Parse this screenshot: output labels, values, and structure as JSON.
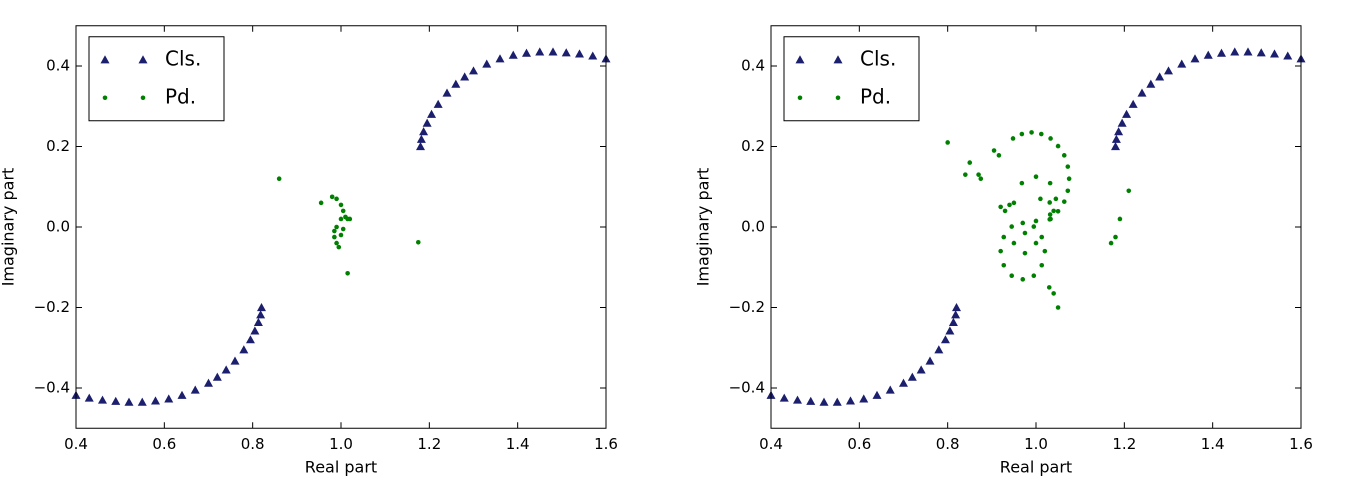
{
  "chart_data": [
    {
      "type": "scatter",
      "xlabel": "Real part",
      "ylabel": "Imaginary part",
      "xlim": [
        0.4,
        1.6
      ],
      "ylim": [
        -0.5,
        0.5
      ],
      "xticks": [
        0.4,
        0.6,
        0.8,
        {
          "value": 1.0,
          "label": "1.0"
        },
        1.2,
        1.4,
        1.6
      ],
      "yticks": [
        {
          "value": -0.4,
          "label": "−0.4"
        },
        {
          "value": -0.2,
          "label": "−0.2"
        },
        {
          "value": 0.0,
          "label": "0.0"
        },
        0.2,
        0.4
      ],
      "legend": "upper left",
      "series": [
        {
          "name": "Cls.",
          "color": "#1b1f6e",
          "marker": "triangle",
          "x": [
            0.4,
            0.43,
            0.46,
            0.49,
            0.52,
            0.55,
            0.58,
            0.61,
            0.64,
            0.67,
            0.7,
            0.72,
            0.74,
            0.76,
            0.78,
            0.795,
            0.805,
            0.813,
            0.818,
            0.82,
            1.18,
            1.182,
            1.187,
            1.195,
            1.205,
            1.22,
            1.24,
            1.26,
            1.28,
            1.3,
            1.33,
            1.36,
            1.39,
            1.42,
            1.45,
            1.48,
            1.51,
            1.54,
            1.57,
            1.6
          ],
          "y": [
            -0.418,
            -0.425,
            -0.43,
            -0.433,
            -0.435,
            -0.435,
            -0.432,
            -0.427,
            -0.418,
            -0.405,
            -0.388,
            -0.373,
            -0.355,
            -0.333,
            -0.305,
            -0.28,
            -0.258,
            -0.237,
            -0.218,
            -0.2,
            0.2,
            0.218,
            0.237,
            0.258,
            0.28,
            0.305,
            0.333,
            0.355,
            0.373,
            0.388,
            0.405,
            0.418,
            0.427,
            0.432,
            0.435,
            0.435,
            0.433,
            0.43,
            0.425,
            0.418
          ]
        },
        {
          "name": "Pd.",
          "color": "#008000",
          "marker": "circle",
          "x": [
            0.86,
            0.955,
            0.98,
            0.99,
            1.0,
            1.005,
            1.01,
            1.015,
            1.02,
            1.0,
            0.99,
            0.985,
            0.985,
            0.99,
            0.995,
            1.0,
            1.005,
            1.015,
            1.175
          ],
          "y": [
            0.12,
            0.06,
            0.075,
            0.07,
            0.055,
            0.04,
            0.025,
            0.02,
            0.02,
            0.02,
            0.0,
            -0.01,
            -0.025,
            -0.04,
            -0.05,
            -0.02,
            -0.005,
            -0.115,
            -0.038
          ]
        }
      ]
    },
    {
      "type": "scatter",
      "xlabel": "Real part",
      "ylabel": "Imaginary part",
      "xlim": [
        0.4,
        1.6
      ],
      "ylim": [
        -0.5,
        0.5
      ],
      "xticks": [
        0.4,
        0.6,
        0.8,
        {
          "value": 1.0,
          "label": "1.0"
        },
        1.2,
        1.4,
        1.6
      ],
      "yticks": [
        {
          "value": -0.4,
          "label": "−0.4"
        },
        {
          "value": -0.2,
          "label": "−0.2"
        },
        {
          "value": 0.0,
          "label": "0.0"
        },
        0.2,
        0.4
      ],
      "legend": "upper left",
      "series": [
        {
          "name": "Cls.",
          "color": "#1b1f6e",
          "marker": "triangle",
          "x": [
            0.4,
            0.43,
            0.46,
            0.49,
            0.52,
            0.55,
            0.58,
            0.61,
            0.64,
            0.67,
            0.7,
            0.72,
            0.74,
            0.76,
            0.78,
            0.795,
            0.805,
            0.813,
            0.818,
            0.82,
            1.18,
            1.182,
            1.187,
            1.195,
            1.205,
            1.22,
            1.24,
            1.26,
            1.28,
            1.3,
            1.33,
            1.36,
            1.39,
            1.42,
            1.45,
            1.48,
            1.51,
            1.54,
            1.57,
            1.6
          ],
          "y": [
            -0.418,
            -0.425,
            -0.43,
            -0.433,
            -0.435,
            -0.435,
            -0.432,
            -0.427,
            -0.418,
            -0.405,
            -0.388,
            -0.373,
            -0.355,
            -0.333,
            -0.305,
            -0.28,
            -0.258,
            -0.237,
            -0.218,
            -0.2,
            0.2,
            0.218,
            0.237,
            0.258,
            0.28,
            0.305,
            0.333,
            0.355,
            0.373,
            0.388,
            0.405,
            0.418,
            0.427,
            0.432,
            0.435,
            0.435,
            0.433,
            0.43,
            0.425,
            0.418
          ]
        },
        {
          "name": "Pd.",
          "color": "#008000",
          "marker": "circle",
          "x": [
            0.916,
            0.948,
            0.968,
            0.99,
            1.012,
            1.033,
            1.05,
            1.064,
            1.072,
            1.075,
            1.072,
            1.064,
            1.05,
            1.033,
            0.968,
            1.0,
            1.032,
            1.045,
            1.032,
            1.0,
            1.01,
            1.031,
            1.04,
            1.031,
            1.02,
            1.013,
            0.995,
            0.97,
            0.945,
            0.927,
            0.92,
            0.927,
            0.945,
            0.97,
            0.995,
            1.013,
            1.03,
            1.04,
            1.05,
            1.0,
            0.975,
            0.95,
            0.975,
            0.8,
            0.85,
            0.87,
            0.875,
            0.84,
            0.905,
            0.92,
            0.93,
            0.94,
            0.95,
            1.17,
            1.18,
            1.19,
            1.21
          ],
          "y": [
            0.178,
            0.22,
            0.231,
            0.235,
            0.231,
            0.22,
            0.201,
            0.178,
            0.15,
            0.12,
            0.09,
            0.063,
            0.039,
            0.02,
            0.109,
            0.125,
            0.109,
            0.07,
            0.031,
            0.015,
            0.07,
            0.061,
            0.04,
            0.019,
            -0.06,
            -0.025,
            0.001,
            0.01,
            0.001,
            -0.025,
            -0.06,
            -0.095,
            -0.121,
            -0.13,
            -0.121,
            -0.095,
            -0.15,
            -0.165,
            -0.2,
            -0.04,
            -0.015,
            -0.04,
            -0.065,
            0.21,
            0.16,
            0.13,
            0.12,
            0.13,
            0.19,
            0.05,
            0.04,
            0.055,
            0.06,
            -0.04,
            -0.025,
            0.02,
            0.09
          ]
        }
      ]
    }
  ]
}
